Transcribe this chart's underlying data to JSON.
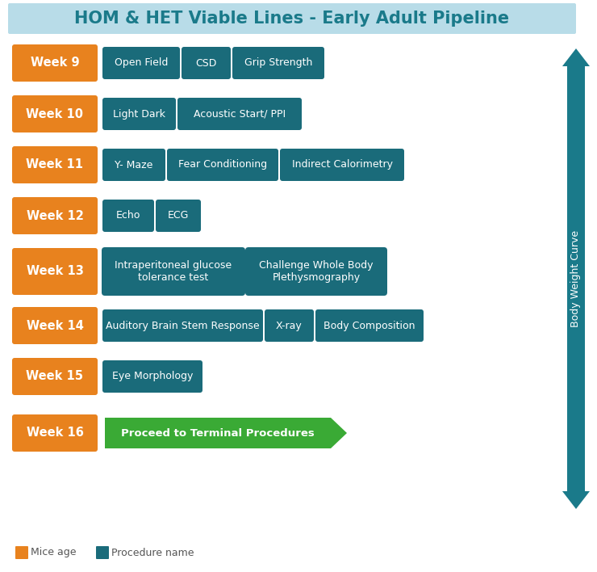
{
  "title": "HOM & HET Viable Lines - Early Adult Pipeline",
  "title_color": "#1a7a8a",
  "title_bg": "#b8dce8",
  "week_color": "#e8821e",
  "proc_color": "#1a6b7a",
  "arrow_color": "#1a7a8a",
  "green_color": "#3aaa35",
  "bg_color": "#ffffff",
  "weeks": [
    "Week 9",
    "Week 10",
    "Week 11",
    "Week 12",
    "Week 13",
    "Week 14",
    "Week 15",
    "Week 16"
  ],
  "procedures": [
    [
      "Open Field",
      "CSD",
      "Grip Strength"
    ],
    [
      "Light Dark",
      "Acoustic Start/ PPI"
    ],
    [
      "Y- Maze",
      "Fear Conditioning",
      "Indirect Calorimetry"
    ],
    [
      "Echo",
      "ECG"
    ],
    [
      "Intraperitoneal glucose\ntolerance test",
      "Challenge Whole Body\nPlethysmography"
    ],
    [
      "Auditory Brain Stem Response",
      "X-ray",
      "Body Composition"
    ],
    [
      "Eye Morphology"
    ],
    [
      "Proceed to Terminal Procedures"
    ]
  ],
  "proc_widths": {
    "Week 9": [
      90,
      55,
      108
    ],
    "Week 10": [
      85,
      148
    ],
    "Week 11": [
      72,
      132,
      148
    ],
    "Week 12": [
      58,
      50
    ],
    "Week 13": [
      170,
      168
    ],
    "Week 14": [
      193,
      55,
      128
    ],
    "Week 15": [
      118
    ],
    "Week 16": [
      300
    ]
  },
  "body_weight_text": "Body Weight Curve",
  "legend_orange_label": "Mice age",
  "legend_teal_label": "Procedure name"
}
